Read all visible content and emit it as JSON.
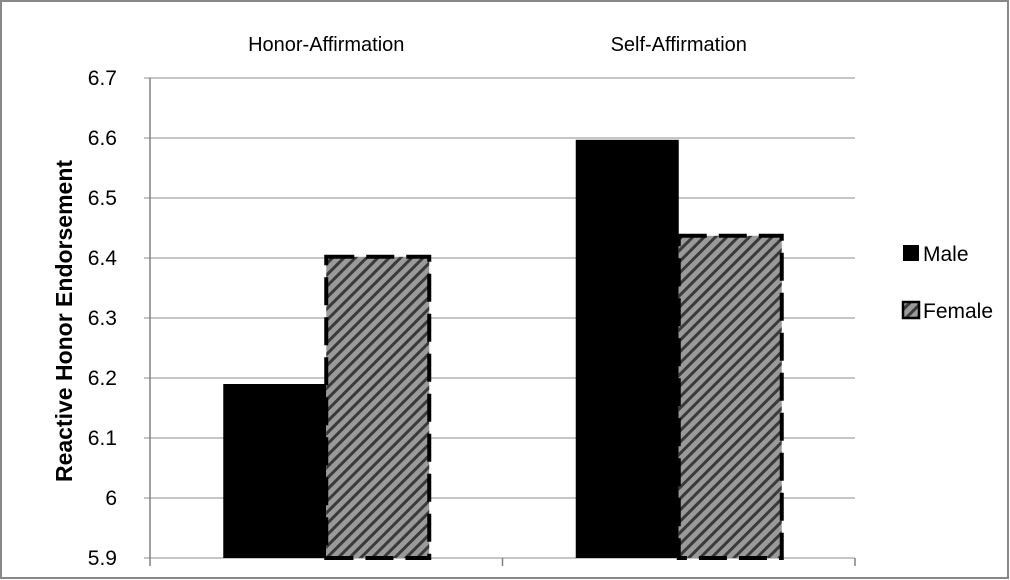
{
  "chart_data": {
    "type": "bar",
    "categories": [
      "Honor-Affirmation",
      "Self-Affirmation"
    ],
    "series": [
      {
        "name": "Male",
        "values": [
          6.19,
          6.597
        ],
        "color": "#000000",
        "pattern": "solid"
      },
      {
        "name": "Female",
        "values": [
          6.402,
          6.437
        ],
        "color": "#7a7a7a",
        "pattern": "diagonal-hatch-dashed-border"
      }
    ],
    "title": "",
    "xlabel": "",
    "ylabel": "Reactive Honor Endorsement",
    "ylim": [
      5.9,
      6.7
    ],
    "yticks": [
      "5.9",
      "6",
      "6.1",
      "6.2",
      "6.3",
      "6.4",
      "6.5",
      "6.6",
      "6.7"
    ],
    "grid": true,
    "legend_position": "right",
    "category_labels_position": "top"
  }
}
